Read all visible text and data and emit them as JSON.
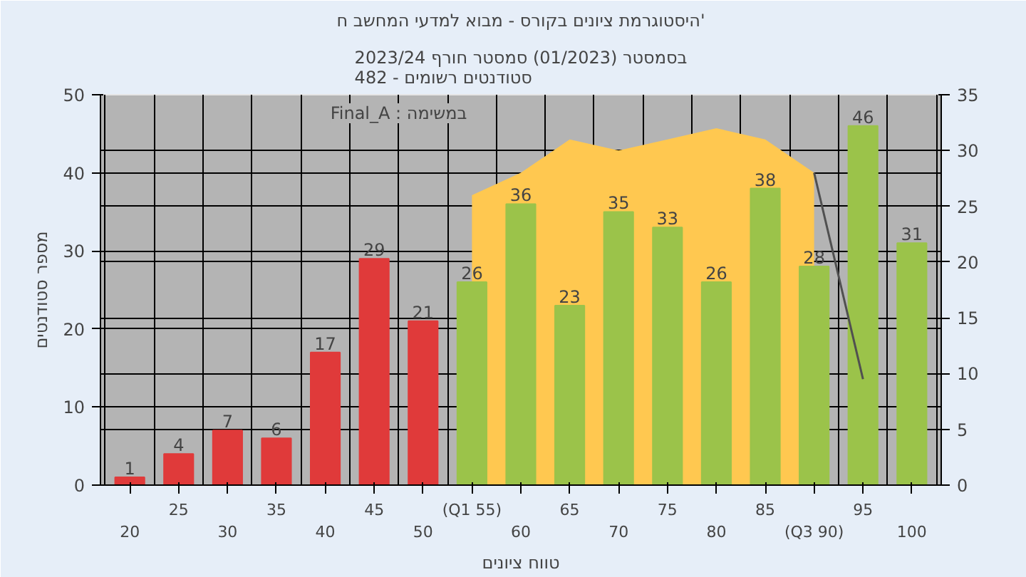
{
  "chart_data": {
    "type": "bar",
    "title": "היסטוגרמת ציונים בקורס - מבוא למדעי המחשב ח'",
    "subtitle": "בסמסטר (01/2023) סמסטר חורף 2023/24\nסטודנטים רשומים - 482",
    "xlabel": "טווח ציונים",
    "ylabel": "מספר סטודנטים",
    "annotations": [
      "Final_A : במשימה"
    ],
    "categories": [
      "20",
      "25",
      "30",
      "35",
      "40",
      "45",
      "50",
      "(Q1 55)",
      "60",
      "65",
      "70",
      "75",
      "80",
      "85",
      "(Q3 90)",
      "95",
      "100"
    ],
    "series": [
      {
        "type": "area",
        "axis": "y2",
        "color": "#ffc850",
        "values": [
          null,
          null,
          null,
          null,
          null,
          null,
          null,
          26,
          28,
          31,
          30,
          31,
          32,
          31,
          28,
          null,
          null
        ]
      },
      {
        "colors": [
          "#e03a3a",
          "#e03a3a",
          "#e03a3a",
          "#e03a3a",
          "#e03a3a",
          "#e03a3a",
          "#e03a3a",
          "#9bc34a",
          "#9bc34a",
          "#9bc34a",
          "#9bc34a",
          "#9bc34a",
          "#9bc34a",
          "#9bc34a",
          "#9bc34a",
          "#9bc34a",
          "#9bc34a"
        ],
        "values": [
          1,
          4,
          7,
          6,
          17,
          29,
          21,
          26,
          36,
          23,
          35,
          33,
          26,
          38,
          28,
          46,
          31
        ],
        "value_labels": [
          "1",
          "4",
          "7",
          "6",
          "17",
          "29",
          "21",
          "26",
          "36",
          "23",
          "35",
          "33",
          "26",
          "38",
          "28",
          "46",
          "31"
        ]
      },
      {
        "type": "line",
        "axis": "y2",
        "color": "#505050",
        "values": [
          null,
          null,
          null,
          null,
          null,
          null,
          null,
          null,
          null,
          null,
          null,
          null,
          null,
          null,
          28,
          9.5,
          null
        ]
      }
    ],
    "ylim": [
      0,
      50
    ],
    "yticks": [
      0,
      10,
      20,
      30,
      40,
      50
    ],
    "y2lim": [
      0,
      35
    ],
    "y2ticks": [
      0,
      5,
      10,
      15,
      20,
      25,
      30,
      35
    ],
    "grid": true
  }
}
